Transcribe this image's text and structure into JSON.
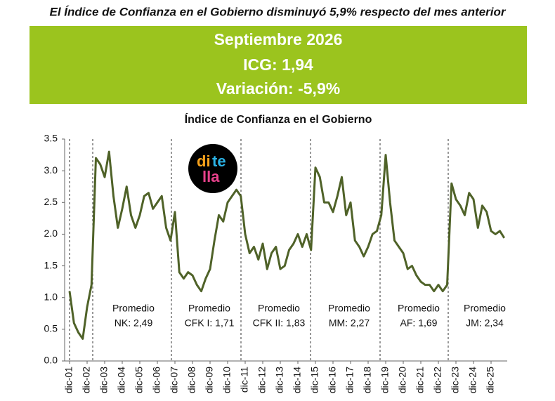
{
  "header": {
    "title": "El Índice de Confianza en el Gobierno disminuyó 5,9% respecto del mes anterior",
    "box_lines": [
      "Septiembre 2026",
      "ICG: 1,94",
      "Variación: -5,9%"
    ]
  },
  "logo": {
    "parts": [
      "di",
      "te",
      "lla"
    ]
  },
  "chart_data": {
    "type": "line",
    "title": "Índice de Confianza en el Gobierno",
    "categories": [
      "dic-01",
      null,
      null,
      null,
      "dic-02",
      null,
      null,
      null,
      "dic-03",
      null,
      null,
      null,
      "dic-04",
      null,
      null,
      null,
      "dic-05",
      null,
      null,
      null,
      "dic-06",
      null,
      null,
      null,
      "dic-07",
      null,
      null,
      null,
      "dic-08",
      null,
      null,
      null,
      "dic-09",
      null,
      null,
      null,
      "dic-10",
      null,
      null,
      null,
      "dic-11",
      null,
      null,
      null,
      "dic-12",
      null,
      null,
      null,
      "dic-13",
      null,
      null,
      null,
      "dic-14",
      null,
      null,
      null,
      "dic-15",
      null,
      null,
      null,
      "dic-16",
      null,
      null,
      null,
      "dic-17",
      null,
      null,
      null,
      "dic-18",
      null,
      null,
      null,
      "dic-19",
      null,
      null,
      null,
      "dic-20",
      null,
      null,
      null,
      "dic-21",
      null,
      null,
      null,
      "dic-22",
      null,
      null,
      null,
      "dic-23",
      null,
      null,
      null,
      "dic-24",
      null,
      null,
      null,
      "dic-25",
      null,
      null,
      null
    ],
    "series": [
      {
        "name": "ICG",
        "color": "#4f6228",
        "values": [
          1.1,
          0.6,
          0.45,
          0.35,
          0.85,
          1.2,
          3.2,
          3.1,
          2.9,
          3.3,
          2.6,
          2.1,
          2.4,
          2.75,
          2.3,
          2.1,
          2.3,
          2.6,
          2.65,
          2.4,
          2.5,
          2.6,
          2.1,
          1.9,
          2.35,
          1.4,
          1.3,
          1.4,
          1.35,
          1.2,
          1.1,
          1.3,
          1.45,
          1.9,
          2.3,
          2.2,
          2.5,
          2.6,
          2.7,
          2.6,
          2.0,
          1.7,
          1.8,
          1.6,
          1.85,
          1.45,
          1.7,
          1.8,
          1.45,
          1.5,
          1.75,
          1.85,
          2.0,
          1.8,
          2.0,
          1.75,
          3.05,
          2.9,
          2.5,
          2.5,
          2.35,
          2.6,
          2.9,
          2.3,
          2.5,
          1.9,
          1.8,
          1.65,
          1.8,
          2.0,
          2.05,
          2.3,
          3.25,
          2.5,
          1.9,
          1.8,
          1.7,
          1.45,
          1.5,
          1.35,
          1.25,
          1.2,
          1.2,
          1.1,
          1.2,
          1.1,
          1.2,
          2.8,
          2.55,
          2.45,
          2.3,
          2.65,
          2.55,
          2.1,
          2.45,
          2.35,
          2.05,
          2.0,
          2.05,
          1.94
        ]
      }
    ],
    "ylim": [
      0,
      3.5
    ],
    "yticks": [
      {
        "value": 0,
        "label": "0.0"
      },
      0.5,
      {
        "value": 1,
        "label": "1.0"
      },
      1.5,
      {
        "value": 2,
        "label": "2.0"
      },
      2.5,
      {
        "value": 3,
        "label": "3.0"
      },
      3.5
    ],
    "grid": false,
    "annotations": [
      [
        "Promedio",
        "NK: 2,49"
      ],
      [
        "Promedio",
        "CFK I: 1,71"
      ],
      [
        "Promedio",
        "CFK II: 1,83"
      ],
      [
        "Promedio",
        "MM: 2,27"
      ],
      [
        "Promedio",
        "AF: 1,69"
      ],
      [
        "Promedio",
        "JM: 2,34"
      ]
    ]
  }
}
